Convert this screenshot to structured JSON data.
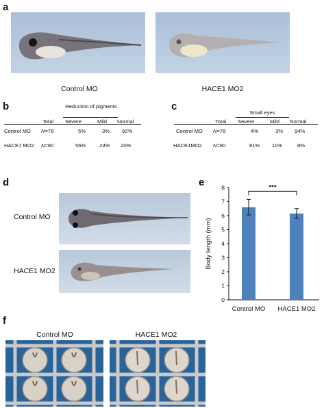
{
  "panels": {
    "a": "a",
    "b": "b",
    "c": "c",
    "d": "d",
    "e": "e",
    "f": "f"
  },
  "panel_a": {
    "left_caption": "Control MO",
    "right_caption": "HACE1 MO2"
  },
  "table_b": {
    "group_header": "Reduction of pigments",
    "columns": [
      "Total",
      "Severe",
      "Mild",
      "Normal"
    ],
    "rows": [
      {
        "label": "Control MO",
        "n_symbol": "N",
        "n": "=78",
        "severe": "5%",
        "mild": "3%",
        "normal": "92%"
      },
      {
        "label": "HACE1 MO2",
        "n_symbol": "N",
        "n": "=80",
        "severe": "56%",
        "mild": "24%",
        "normal": "20%"
      }
    ]
  },
  "table_c": {
    "group_header": "Small eyes",
    "columns": [
      "Total",
      "Severe",
      "Mild",
      "Normal"
    ],
    "rows": [
      {
        "label": "Control MO",
        "n_symbol": "N",
        "n": "=78",
        "severe": "4%",
        "mild": "3%",
        "normal": "94%"
      },
      {
        "label": "HACE1MO2",
        "n_symbol": "N",
        "n": "=80",
        "severe": "81%",
        "mild": "11%",
        "normal": "8%"
      }
    ]
  },
  "panel_d": {
    "top_label": "Control MO",
    "bottom_label": "HACE1 MO2"
  },
  "panel_f": {
    "left_caption": "Control MO",
    "right_caption": "HACE1 MO2"
  },
  "chart_data": {
    "type": "bar",
    "categories": [
      "Control MO",
      "HACE1 MO2"
    ],
    "values": [
      6.6,
      6.15
    ],
    "errors": [
      0.55,
      0.35
    ],
    "ylabel": "Body length (mm)",
    "xlabel": "",
    "ylim": [
      0,
      8
    ],
    "yticks": [
      "0",
      "1",
      "2",
      "3",
      "4",
      "5",
      "6",
      "7",
      "8"
    ],
    "significance": "***",
    "bar_color": "#4f81bd",
    "grid": false
  }
}
